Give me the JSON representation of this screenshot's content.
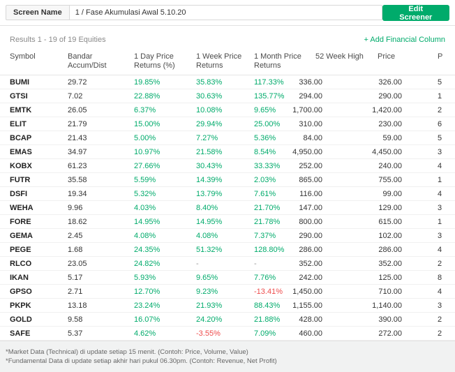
{
  "colors": {
    "green": "#00ab6b",
    "red": "#ee4b4b"
  },
  "header": {
    "screen_name_label": "Screen Name",
    "screen_name_value": "1 / Fase Akumulasi Awal 5.10.20",
    "edit_button_label": "Edit Screener"
  },
  "results": {
    "summary": "Results 1 - 19 of 19 Equities",
    "add_column_label": "+ Add Financial Column"
  },
  "table": {
    "columns": [
      "Symbol",
      "Bandar Accum/Dist",
      "1 Day Price Returns (%)",
      "1 Week Price Returns",
      "1 Month Price Returns",
      "52 Week High",
      "Price",
      "P"
    ],
    "rows": [
      [
        "BUMI",
        "29.72",
        "19.85%",
        "35.83%",
        "117.33%",
        "336.00",
        "326.00",
        "5"
      ],
      [
        "GTSI",
        "7.02",
        "22.88%",
        "30.63%",
        "135.77%",
        "294.00",
        "290.00",
        "1"
      ],
      [
        "EMTK",
        "26.05",
        "6.37%",
        "10.08%",
        "9.65%",
        "1,700.00",
        "1,420.00",
        "2"
      ],
      [
        "ELIT",
        "21.79",
        "15.00%",
        "29.94%",
        "25.00%",
        "310.00",
        "230.00",
        "6"
      ],
      [
        "BCAP",
        "21.43",
        "5.00%",
        "7.27%",
        "5.36%",
        "84.00",
        "59.00",
        "5"
      ],
      [
        "EMAS",
        "34.97",
        "10.97%",
        "21.58%",
        "8.54%",
        "4,950.00",
        "4,450.00",
        "3"
      ],
      [
        "KOBX",
        "61.23",
        "27.66%",
        "30.43%",
        "33.33%",
        "252.00",
        "240.00",
        "4"
      ],
      [
        "FUTR",
        "35.58",
        "5.59%",
        "14.39%",
        "2.03%",
        "865.00",
        "755.00",
        "1"
      ],
      [
        "DSFI",
        "19.34",
        "5.32%",
        "13.79%",
        "7.61%",
        "116.00",
        "99.00",
        "4"
      ],
      [
        "WEHA",
        "9.96",
        "4.03%",
        "8.40%",
        "21.70%",
        "147.00",
        "129.00",
        "3"
      ],
      [
        "FORE",
        "18.62",
        "14.95%",
        "14.95%",
        "21.78%",
        "800.00",
        "615.00",
        "1"
      ],
      [
        "GEMA",
        "2.45",
        "4.08%",
        "4.08%",
        "7.37%",
        "290.00",
        "102.00",
        "3"
      ],
      [
        "PEGE",
        "1.68",
        "24.35%",
        "51.32%",
        "128.80%",
        "286.00",
        "286.00",
        "4"
      ],
      [
        "RLCO",
        "23.05",
        "24.82%",
        "-",
        "-",
        "352.00",
        "352.00",
        "2"
      ],
      [
        "IKAN",
        "5.17",
        "5.93%",
        "9.65%",
        "7.76%",
        "242.00",
        "125.00",
        "8"
      ],
      [
        "GPSO",
        "2.71",
        "12.70%",
        "9.23%",
        "-13.41%",
        "1,450.00",
        "710.00",
        "4"
      ],
      [
        "PKPK",
        "13.18",
        "23.24%",
        "21.93%",
        "88.43%",
        "1,155.00",
        "1,140.00",
        "3"
      ],
      [
        "GOLD",
        "9.58",
        "16.07%",
        "24.20%",
        "21.88%",
        "428.00",
        "390.00",
        "2"
      ],
      [
        "SAFE",
        "5.37",
        "4.62%",
        "-3.55%",
        "7.09%",
        "460.00",
        "272.00",
        "2"
      ]
    ]
  },
  "footnotes": [
    "*Market Data (Technical) di update setiap 15 menit. (Contoh: Price, Volume, Value)",
    "*Fundamental Data di update setiap akhir hari pukul 06.30pm. (Contoh: Revenue, Net Profit)"
  ]
}
